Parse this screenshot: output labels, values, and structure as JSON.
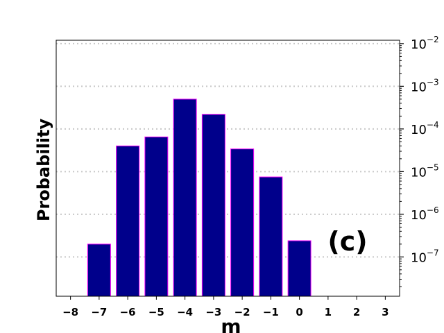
{
  "chart_data": {
    "type": "bar",
    "title": "",
    "xlabel": "m",
    "ylabel": "Probability",
    "annotation": "(c)",
    "y_scale": "log",
    "y_axis_side": "right",
    "xlim": [
      -8.5,
      3.5
    ],
    "ylim": [
      1.2e-08,
      0.012
    ],
    "grid": "y-major dotted",
    "x": [
      -7,
      -6,
      -5,
      -4,
      -3,
      -2,
      -1,
      0
    ],
    "values": [
      2e-07,
      4e-05,
      6.5e-05,
      0.0005,
      0.00022,
      3.4e-05,
      7.5e-06,
      2.4e-07
    ],
    "x_ticks": [
      -8,
      -7,
      -6,
      -5,
      -4,
      -3,
      -2,
      -1,
      0,
      1,
      2,
      3
    ],
    "x_tick_labels": [
      "−8",
      "−7",
      "−6",
      "−5",
      "−4",
      "−3",
      "−2",
      "−1",
      "0",
      "1",
      "2",
      "3"
    ],
    "y_ticks": [
      {
        "value": 0.01,
        "base": "10",
        "exp": "−2"
      },
      {
        "value": 0.001,
        "base": "10",
        "exp": "−3"
      },
      {
        "value": 0.0001,
        "base": "10",
        "exp": "−4"
      },
      {
        "value": 1e-05,
        "base": "10",
        "exp": "−5"
      },
      {
        "value": 1e-06,
        "base": "10",
        "exp": "−6"
      },
      {
        "value": 1e-07,
        "base": "10",
        "exp": "−7"
      }
    ],
    "bar_fill": "#00008b",
    "bar_edge": "#ff00ff"
  }
}
